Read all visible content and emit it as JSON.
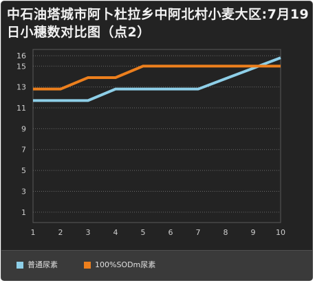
{
  "chart_data": {
    "type": "line",
    "title": "中石油塔城市阿卜杜拉乡中阿北村小麦大区:7月19日小穗数对比图（点2）",
    "x": [
      1,
      2,
      3,
      4,
      5,
      6,
      7,
      8,
      9,
      10
    ],
    "y_ticks": [
      1,
      3,
      5,
      7,
      9,
      11,
      13,
      15,
      16
    ],
    "ylim": [
      0,
      16.6
    ],
    "series": [
      {
        "name": "普通尿素",
        "color": "#8ecfe8",
        "values": [
          11.7,
          11.7,
          11.7,
          12.8,
          12.8,
          12.8,
          12.8,
          13.8,
          14.8,
          15.8
        ]
      },
      {
        "name": "100%SODm尿素",
        "color": "#ec7f1d",
        "values": [
          12.8,
          12.8,
          13.9,
          13.9,
          15,
          15,
          15,
          15,
          15,
          15
        ]
      }
    ],
    "grid": true,
    "legend_position": "bottom"
  }
}
